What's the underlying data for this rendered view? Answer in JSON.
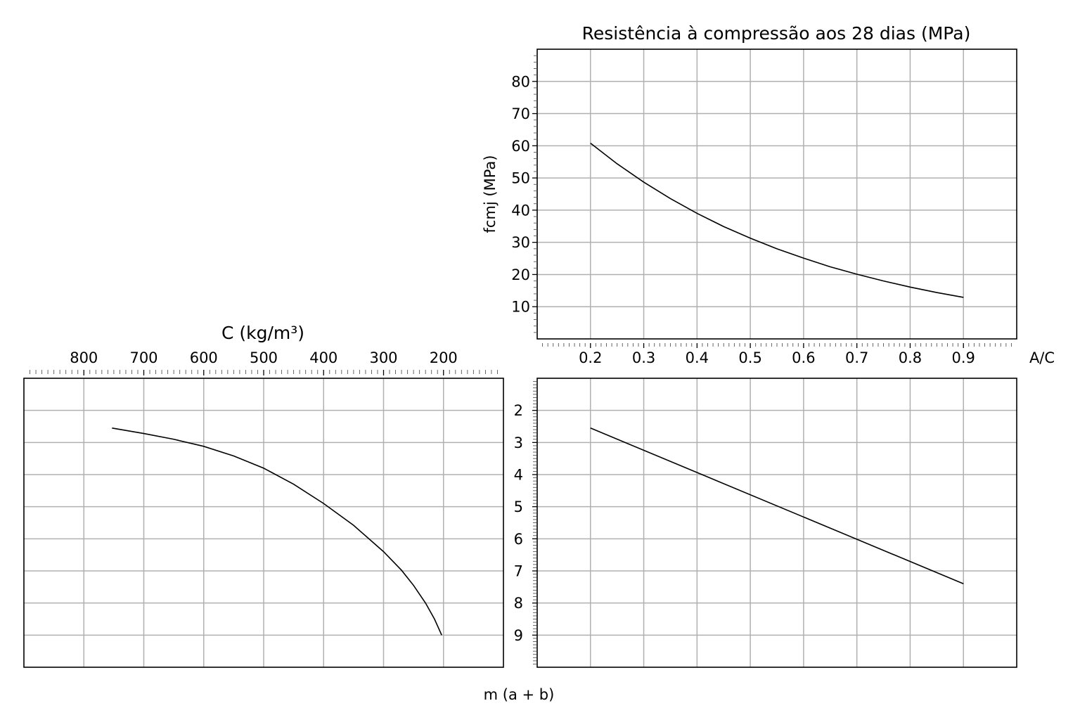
{
  "chart_data": [
    {
      "id": "strength",
      "type": "line",
      "title": "Resistência à compressão aos 28 dias (MPa)",
      "xlabel": "A/C",
      "ylabel": "fcmj (MPa)",
      "xlim": [
        0.1,
        1.0
      ],
      "ylim": [
        0,
        90
      ],
      "xticks": [
        0.2,
        0.3,
        0.4,
        0.5,
        0.6,
        0.7,
        0.8,
        0.9
      ],
      "yticks": [
        10,
        20,
        30,
        40,
        50,
        60,
        70,
        80
      ],
      "grid": true,
      "series": [
        {
          "x": [
            0.2,
            0.25,
            0.3,
            0.35,
            0.4,
            0.45,
            0.5,
            0.55,
            0.6,
            0.65,
            0.7,
            0.75,
            0.8,
            0.85,
            0.9
          ],
          "y": [
            60.8,
            54.4,
            48.7,
            43.6,
            39.0,
            34.9,
            31.3,
            28.0,
            25.1,
            22.4,
            20.1,
            18.0,
            16.1,
            14.4,
            12.9
          ]
        }
      ]
    },
    {
      "id": "mix",
      "type": "line",
      "xlabel": "",
      "ylabel": "",
      "xlim": [
        0.1,
        1.0
      ],
      "ylim": [
        10,
        1
      ],
      "yticks": [
        2,
        3,
        4,
        5,
        6,
        7,
        8,
        9
      ],
      "grid": true,
      "series": [
        {
          "x": [
            0.2,
            0.9
          ],
          "y": [
            2.55,
            7.4
          ]
        }
      ]
    },
    {
      "id": "cement",
      "type": "line",
      "xlabel": "C (kg/m³)",
      "ylabel": "",
      "xlim": [
        900,
        100
      ],
      "ylim": [
        10,
        1
      ],
      "xticks": [
        800,
        700,
        600,
        500,
        400,
        300,
        200
      ],
      "grid": true,
      "series": [
        {
          "x": [
            753,
            700,
            650,
            600,
            550,
            500,
            450,
            400,
            350,
            300,
            270,
            250,
            230,
            215,
            203
          ],
          "y": [
            2.55,
            2.72,
            2.9,
            3.12,
            3.42,
            3.8,
            4.3,
            4.9,
            5.58,
            6.4,
            6.98,
            7.45,
            8.0,
            8.5,
            9.0
          ]
        }
      ]
    }
  ],
  "shared_label": "m (a + b)"
}
